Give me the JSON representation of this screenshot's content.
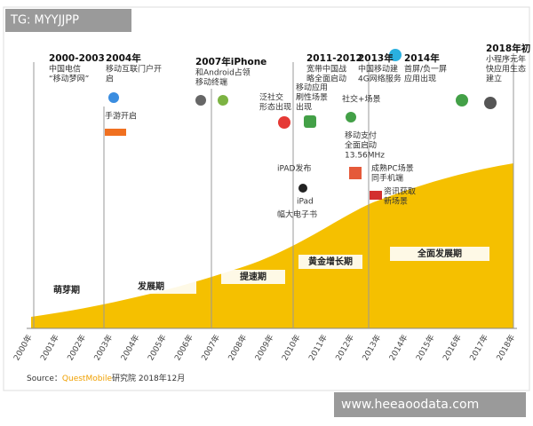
{
  "watermark": "TG: MYYJJPP",
  "footer_site": "www.heeaoodata.com",
  "source": {
    "prefix": "Source：",
    "brand": "QuestMobile",
    "suffix": "研究院 2018年12月"
  },
  "years": [
    "2000年",
    "2001年",
    "2002年",
    "2003年",
    "2004年",
    "2005年",
    "2006年",
    "2007年",
    "2008年",
    "2009年",
    "2010年",
    "2011年",
    "2012年",
    "2013年",
    "2014年",
    "2015年",
    "2016年",
    "2017年",
    "2018年"
  ],
  "phases": [
    "萌芽期",
    "发展期",
    "提速期",
    "黄金增长期",
    "全面发展期"
  ],
  "events": [
    {
      "title": "2000-2003",
      "lines": [
        "中国电信",
        "“移动梦网”"
      ]
    },
    {
      "title": "2004年",
      "lines": [
        "移动互联门户开",
        "启"
      ]
    },
    {
      "title": "2007年iPhone",
      "lines": [
        "和Android占领",
        "移动终端"
      ]
    },
    {
      "title": "2011-2012",
      "lines": [
        "宽带中国战",
        "略全面启动"
      ]
    },
    {
      "title": "2013年",
      "lines": [
        "中国移动建",
        "4G网络服务"
      ]
    },
    {
      "title": "2014年",
      "lines": [
        "首屏/负一屏",
        "应用出现"
      ]
    },
    {
      "title": "2018年初",
      "lines": [
        "小程序元年",
        "快应用生态",
        "建立"
      ]
    }
  ],
  "notes": [
    {
      "lines": [
        "手游开启"
      ]
    },
    {
      "lines": [
        "泛社交",
        "形态出现"
      ]
    },
    {
      "lines": [
        "移动应用",
        "刷性场景",
        "出现"
      ]
    },
    {
      "lines": [
        "iPAD发布"
      ]
    },
    {
      "lines": [
        "iPad"
      ]
    },
    {
      "lines": [
        "幅大电子书"
      ]
    },
    {
      "lines": [
        "社交+场景"
      ]
    },
    {
      "lines": [
        "移动支付",
        "全面启动",
        "13.56MHz"
      ]
    },
    {
      "lines": [
        "成熟PC场景",
        "同手机端"
      ]
    },
    {
      "lines": [
        "资讯获取",
        "新场景"
      ]
    }
  ]
}
